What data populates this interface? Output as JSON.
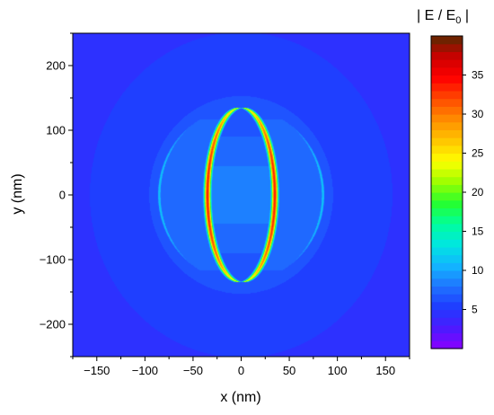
{
  "chart_data": {
    "type": "heatmap",
    "title": "",
    "xlabel": "x (nm)",
    "ylabel": "y (nm)",
    "xlim": [
      -175,
      175
    ],
    "ylim": [
      -250,
      250
    ],
    "x_ticks": [
      -150,
      -100,
      -50,
      0,
      50,
      100,
      150
    ],
    "y_ticks": [
      -200,
      -100,
      0,
      100,
      200
    ],
    "colorbar": {
      "title_main": "| E / E",
      "title_sub": "0",
      "title_end": " |",
      "range": [
        0,
        40
      ],
      "ticks": [
        5,
        10,
        15,
        20,
        25,
        30,
        35
      ],
      "levels": 40
    },
    "field": {
      "background": 4,
      "structure_center": [
        0,
        0
      ],
      "inner_shell_half_width_nm": 35,
      "outer_shell_half_width_nm": 85,
      "half_height_nm": 135,
      "inner_shell_peak": 28,
      "outer_shell_peak": 12,
      "core_value": 9
    }
  },
  "colors": {
    "colormap": [
      "#8a00ff",
      "#4b1bff",
      "#1f3bff",
      "#1f74ff",
      "#12b6ff",
      "#00e6e0",
      "#00ff9c",
      "#25ff2e",
      "#9cff00",
      "#ffff00",
      "#ffc400",
      "#ff8c00",
      "#ff4a00",
      "#ff0000",
      "#cc0000",
      "#5a2a00"
    ]
  }
}
